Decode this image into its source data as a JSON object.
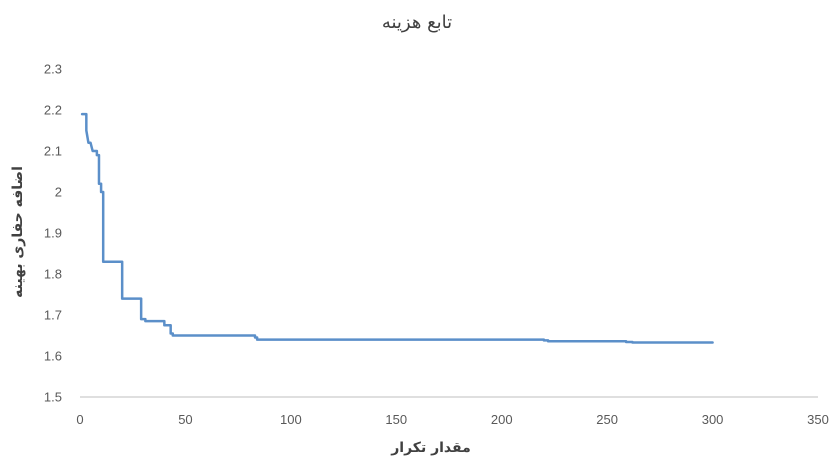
{
  "chart_data": {
    "type": "line",
    "title": "تابع هزینه",
    "xlabel": "مقدار تکرار",
    "ylabel": "اضافه حفاری بهینه",
    "xlim": [
      0,
      350
    ],
    "ylim": [
      1.5,
      2.3
    ],
    "x_ticks": [
      0,
      50,
      100,
      150,
      200,
      250,
      300,
      350
    ],
    "y_ticks": [
      1.5,
      1.6,
      1.7,
      1.8,
      1.9,
      2.0,
      2.1,
      2.2,
      2.3
    ],
    "x_tick_labels": [
      "0",
      "50",
      "100",
      "150",
      "200",
      "250",
      "300",
      "350"
    ],
    "y_tick_labels": [
      "1.5",
      "1.6",
      "1.7",
      "1.8",
      "1.9",
      "2",
      "2.1",
      "2.2",
      "2.3"
    ],
    "grid": false,
    "legend": "none",
    "series": [
      {
        "color": "#5b8fc9",
        "step": true,
        "points": [
          [
            1,
            2.19
          ],
          [
            3,
            2.19
          ],
          [
            3,
            2.15
          ],
          [
            4,
            2.12
          ],
          [
            5,
            2.12
          ],
          [
            6,
            2.1
          ],
          [
            8,
            2.1
          ],
          [
            8,
            2.09
          ],
          [
            9,
            2.09
          ],
          [
            9,
            2.02
          ],
          [
            10,
            2.02
          ],
          [
            10,
            2.0
          ],
          [
            11,
            2.0
          ],
          [
            11,
            1.83
          ],
          [
            20,
            1.83
          ],
          [
            20,
            1.74
          ],
          [
            29,
            1.74
          ],
          [
            29,
            1.69
          ],
          [
            31,
            1.69
          ],
          [
            31,
            1.685
          ],
          [
            40,
            1.685
          ],
          [
            40,
            1.675
          ],
          [
            43,
            1.675
          ],
          [
            43,
            1.655
          ],
          [
            44,
            1.655
          ],
          [
            44,
            1.65
          ],
          [
            83,
            1.65
          ],
          [
            83,
            1.645
          ],
          [
            84,
            1.645
          ],
          [
            84,
            1.64
          ],
          [
            220,
            1.64
          ],
          [
            220,
            1.638
          ],
          [
            222,
            1.638
          ],
          [
            222,
            1.636
          ],
          [
            259,
            1.636
          ],
          [
            259,
            1.634
          ],
          [
            262,
            1.634
          ],
          [
            262,
            1.633
          ],
          [
            300,
            1.633
          ]
        ]
      }
    ]
  }
}
